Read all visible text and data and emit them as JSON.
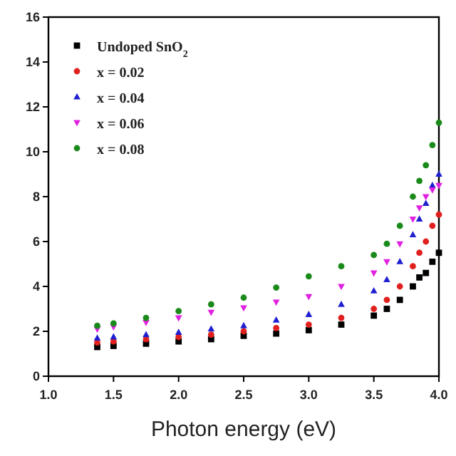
{
  "chart_data": {
    "type": "scatter",
    "xlabel": "Photon energy (eV)",
    "x": [
      1.375,
      1.5,
      1.75,
      2.0,
      2.25,
      2.5,
      2.75,
      3.0,
      3.25,
      3.5,
      3.6,
      3.7,
      3.8,
      3.85,
      3.9,
      3.95,
      4.0
    ],
    "xlim": [
      1.0,
      4.0
    ],
    "xticks": [
      {
        "value": 1,
        "label": "1.0"
      },
      1.5,
      {
        "value": 2,
        "label": "2.0"
      },
      2.5,
      {
        "value": 3,
        "label": "3.0"
      },
      3.5,
      {
        "value": 4,
        "label": "4.0"
      }
    ],
    "ylim": [
      0,
      16
    ],
    "yticks": [
      0,
      2,
      4,
      6,
      8,
      10,
      12,
      14,
      16
    ],
    "legend": "top left",
    "grid": false,
    "series": [
      {
        "name": "Undoped SnO$_{2}$",
        "color": "#000000",
        "marker": "square",
        "values": [
          1.3,
          1.35,
          1.45,
          1.55,
          1.65,
          1.8,
          1.9,
          2.05,
          2.3,
          2.7,
          3.0,
          3.4,
          4.0,
          4.4,
          4.6,
          5.1,
          5.5
        ]
      },
      {
        "name": "x = 0.02",
        "color": "#e0201e",
        "marker": "circle",
        "values": [
          1.5,
          1.55,
          1.65,
          1.75,
          1.85,
          2.0,
          2.15,
          2.3,
          2.6,
          3.0,
          3.4,
          4.0,
          4.9,
          5.5,
          6.0,
          6.7,
          7.2
        ]
      },
      {
        "name": "x = 0.04",
        "color": "#1f1fd0",
        "marker": "triangle",
        "values": [
          1.7,
          1.75,
          1.85,
          1.95,
          2.1,
          2.25,
          2.5,
          2.75,
          3.2,
          3.8,
          4.3,
          5.1,
          6.3,
          7.0,
          7.7,
          8.5,
          9.0
        ]
      },
      {
        "name": "x = 0.06",
        "color": "#e020e0",
        "marker": "triangle-down",
        "values": [
          2.1,
          2.2,
          2.4,
          2.6,
          2.85,
          3.05,
          3.3,
          3.55,
          4.0,
          4.6,
          5.1,
          5.9,
          7.0,
          7.5,
          8.0,
          8.3,
          8.5
        ]
      },
      {
        "name": "x = 0.08",
        "color": "#1a8a1a",
        "marker": "circle",
        "values": [
          2.25,
          2.35,
          2.6,
          2.9,
          3.2,
          3.5,
          3.95,
          4.45,
          4.9,
          5.4,
          5.9,
          6.7,
          8.0,
          8.7,
          9.4,
          10.3,
          11.3
        ]
      }
    ]
  }
}
